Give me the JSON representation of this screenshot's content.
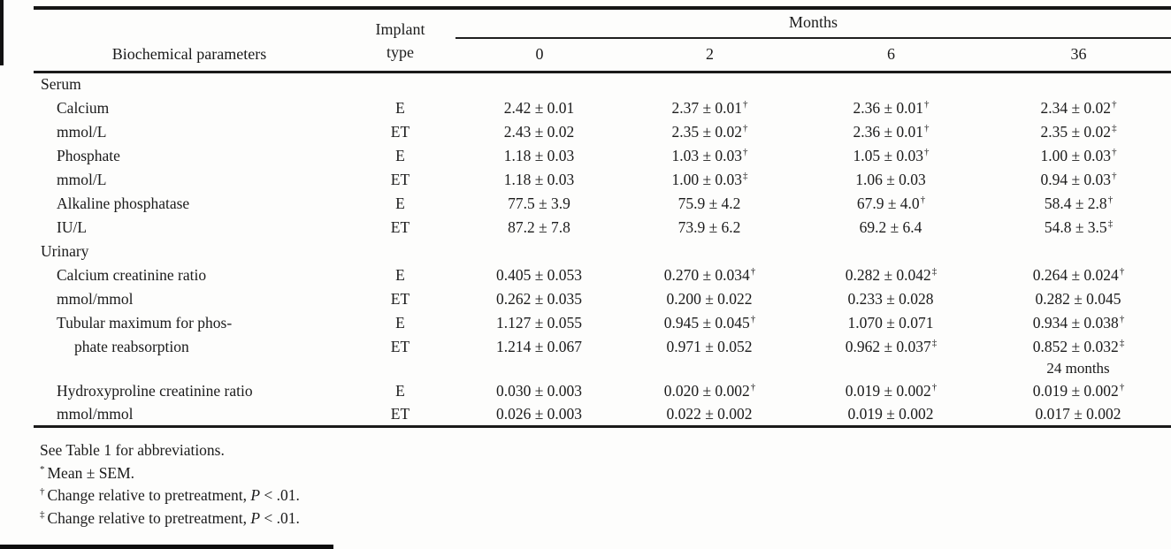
{
  "table": {
    "header": {
      "param": "Biochemical parameters",
      "implant_line1": "Implant",
      "implant_line2": "type",
      "months_label": "Months",
      "month_columns": [
        "0",
        "2",
        "6",
        "36"
      ]
    },
    "rows": [
      {
        "label": "Serum",
        "indent": 0,
        "implant": "",
        "cells": [
          {
            "v": "",
            "s": ""
          },
          {
            "v": "",
            "s": ""
          },
          {
            "v": "",
            "s": ""
          },
          {
            "v": "",
            "s": ""
          }
        ]
      },
      {
        "label": "Calcium",
        "indent": 1,
        "implant": "E",
        "cells": [
          {
            "v": "2.42 ± 0.01",
            "s": ""
          },
          {
            "v": "2.37 ± 0.01",
            "s": "†"
          },
          {
            "v": "2.36 ± 0.01",
            "s": "†"
          },
          {
            "v": "2.34 ± 0.02",
            "s": "†"
          }
        ]
      },
      {
        "label": "mmol/L",
        "indent": 1,
        "implant": "ET",
        "cells": [
          {
            "v": "2.43 ± 0.02",
            "s": ""
          },
          {
            "v": "2.35 ± 0.02",
            "s": "†"
          },
          {
            "v": "2.36 ± 0.01",
            "s": "†"
          },
          {
            "v": "2.35 ± 0.02",
            "s": "‡"
          }
        ]
      },
      {
        "label": "Phosphate",
        "indent": 1,
        "implant": "E",
        "cells": [
          {
            "v": "1.18 ± 0.03",
            "s": ""
          },
          {
            "v": "1.03 ± 0.03",
            "s": "†"
          },
          {
            "v": "1.05 ± 0.03",
            "s": "†"
          },
          {
            "v": "1.00 ± 0.03",
            "s": "†"
          }
        ]
      },
      {
        "label": "mmol/L",
        "indent": 1,
        "implant": "ET",
        "cells": [
          {
            "v": "1.18 ± 0.03",
            "s": ""
          },
          {
            "v": "1.00 ± 0.03",
            "s": "‡"
          },
          {
            "v": "1.06 ± 0.03",
            "s": ""
          },
          {
            "v": "0.94 ± 0.03",
            "s": "†"
          }
        ]
      },
      {
        "label": "Alkaline phosphatase",
        "indent": 1,
        "implant": "E",
        "cells": [
          {
            "v": "77.5 ± 3.9",
            "s": ""
          },
          {
            "v": "75.9 ± 4.2",
            "s": ""
          },
          {
            "v": "67.9 ± 4.0",
            "s": "†"
          },
          {
            "v": "58.4 ± 2.8",
            "s": "†"
          }
        ]
      },
      {
        "label": "IU/L",
        "indent": 1,
        "implant": "ET",
        "cells": [
          {
            "v": "87.2 ± 7.8",
            "s": ""
          },
          {
            "v": "73.9 ± 6.2",
            "s": ""
          },
          {
            "v": "69.2 ± 6.4",
            "s": ""
          },
          {
            "v": "54.8 ± 3.5",
            "s": "‡"
          }
        ]
      },
      {
        "label": "Urinary",
        "indent": 0,
        "implant": "",
        "cells": [
          {
            "v": "",
            "s": ""
          },
          {
            "v": "",
            "s": ""
          },
          {
            "v": "",
            "s": ""
          },
          {
            "v": "",
            "s": ""
          }
        ]
      },
      {
        "label": "Calcium creatinine ratio",
        "indent": 1,
        "implant": "E",
        "cells": [
          {
            "v": "0.405 ± 0.053",
            "s": ""
          },
          {
            "v": "0.270 ± 0.034",
            "s": "†"
          },
          {
            "v": "0.282 ± 0.042",
            "s": "‡"
          },
          {
            "v": "0.264 ± 0.024",
            "s": "†"
          }
        ]
      },
      {
        "label": "mmol/mmol",
        "indent": 1,
        "implant": "ET",
        "cells": [
          {
            "v": "0.262 ± 0.035",
            "s": ""
          },
          {
            "v": "0.200 ± 0.022",
            "s": ""
          },
          {
            "v": "0.233 ± 0.028",
            "s": ""
          },
          {
            "v": "0.282 ± 0.045",
            "s": ""
          }
        ]
      },
      {
        "label": "Tubular maximum for phos-",
        "indent": 1,
        "implant": "E",
        "cells": [
          {
            "v": "1.127 ± 0.055",
            "s": ""
          },
          {
            "v": "0.945 ± 0.045",
            "s": "†"
          },
          {
            "v": "1.070 ± 0.071",
            "s": ""
          },
          {
            "v": "0.934 ± 0.038",
            "s": "†"
          }
        ]
      },
      {
        "label": "phate reabsorption",
        "indent": 2,
        "implant": "ET",
        "cells": [
          {
            "v": "1.214 ± 0.067",
            "s": ""
          },
          {
            "v": "0.971 ± 0.052",
            "s": ""
          },
          {
            "v": "0.962 ± 0.037",
            "s": "‡"
          },
          {
            "v": "0.852 ± 0.032",
            "s": "‡"
          }
        ]
      },
      {
        "label": "",
        "indent": 1,
        "implant": "",
        "note": true,
        "cells": [
          {
            "v": "",
            "s": ""
          },
          {
            "v": "",
            "s": ""
          },
          {
            "v": "",
            "s": ""
          },
          {
            "v": "24 months",
            "s": ""
          }
        ]
      },
      {
        "label": "Hydroxyproline creatinine ratio",
        "indent": 1,
        "implant": "E",
        "cells": [
          {
            "v": "0.030 ± 0.003",
            "s": ""
          },
          {
            "v": "0.020 ± 0.002",
            "s": "†"
          },
          {
            "v": "0.019 ± 0.002",
            "s": "†"
          },
          {
            "v": "0.019 ± 0.002",
            "s": "†"
          }
        ]
      },
      {
        "label": "mmol/mmol",
        "indent": 1,
        "implant": "ET",
        "cells": [
          {
            "v": "0.026 ± 0.003",
            "s": ""
          },
          {
            "v": "0.022 ± 0.002",
            "s": ""
          },
          {
            "v": "0.019 ± 0.002",
            "s": ""
          },
          {
            "v": "0.017 ± 0.002",
            "s": ""
          }
        ]
      }
    ],
    "footnotes": [
      {
        "sup": "",
        "pre": "See Table 1 for abbreviations.",
        "it": "",
        "post": ""
      },
      {
        "sup": "*",
        "pre": "Mean ± SEM.",
        "it": "",
        "post": ""
      },
      {
        "sup": "†",
        "pre": "Change relative to pretreatment, ",
        "it": "P",
        "post": " < .01."
      },
      {
        "sup": "‡",
        "pre": "Change relative to pretreatment, ",
        "it": "P",
        "post": " < .01."
      }
    ]
  }
}
